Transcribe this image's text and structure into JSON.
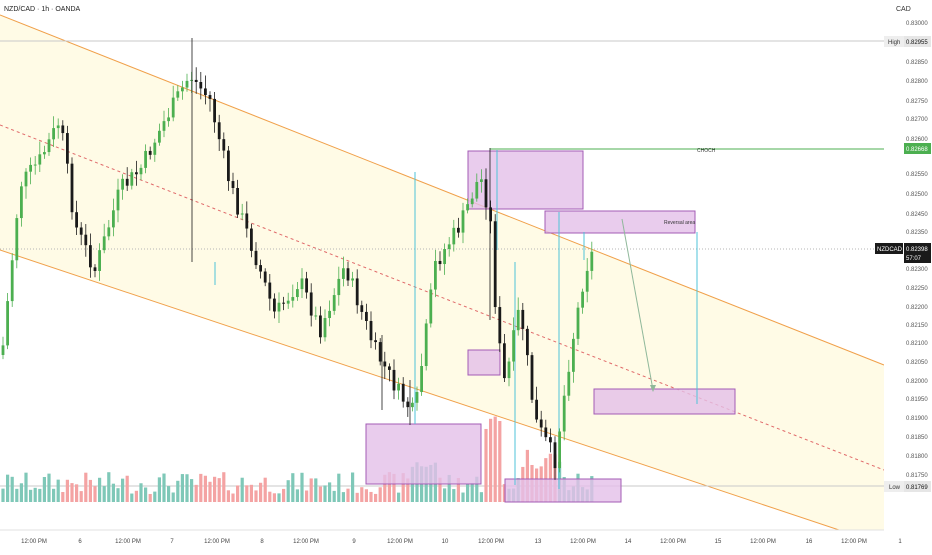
{
  "header": {
    "symbol_title": "NZD/CAD · 1h · OANDA",
    "currency": "CAD"
  },
  "price_scale": {
    "ticks": [
      "0.83000",
      "0.82900",
      "0.82850",
      "0.82800",
      "0.82750",
      "0.82700",
      "0.82600",
      "0.82550",
      "0.82500",
      "0.82450",
      "0.82350",
      "0.82300",
      "0.82250",
      "0.82200",
      "0.82150",
      "0.82100",
      "0.82050",
      "0.82000",
      "0.81950",
      "0.81900",
      "0.81850",
      "0.81800",
      "0.81750"
    ],
    "high_label": "High",
    "high_value": "0.82955",
    "choch_value": "0.82668",
    "symbol_tag": "NZDCAD",
    "current_value": "0.82398",
    "countdown": "57:07",
    "low_label": "Low",
    "low_value": "0.81769"
  },
  "time_axis": {
    "labels": [
      "12:00 PM",
      "6",
      "12:00 PM",
      "7",
      "12:00 PM",
      "8",
      "12:00 PM",
      "9",
      "12:00 PM",
      "10",
      "12:00 PM",
      "13",
      "12:00 PM",
      "14",
      "12:00 PM",
      "15",
      "12:00 PM",
      "16",
      "12:00 PM",
      "1"
    ]
  },
  "annotations": {
    "choch_label": "CHOCH",
    "reversal_label": "Reversal area"
  },
  "colors": {
    "up": "#4caf50",
    "down": "#1a1a1a",
    "vol_up": "#7fc8b8",
    "vol_down": "#f4a3a3",
    "channel": "#f0a04a",
    "midline": "#e06a6a",
    "zone_fill": "#e3bfe8",
    "zone_stroke": "#a35bb5",
    "choch_line": "#4caf50",
    "projection": "#4fc3d8"
  },
  "chart_data": {
    "type": "candlestick",
    "symbol": "NZD/CAD",
    "timeframe": "1h",
    "source": "OANDA",
    "ylim": [
      0.8172,
      0.8305
    ],
    "series": [
      {
        "name": "price_path",
        "x": [
          "5 12:00 PM",
          "6",
          "6 12:00 PM",
          "7",
          "7 12:00 PM",
          "8",
          "8 12:00 PM",
          "9",
          "9 12:00 PM",
          "10",
          "10 12:00 PM",
          "13",
          "13 12:00 PM",
          "13 late"
        ],
        "values": [
          0.8245,
          0.8253,
          0.8268,
          0.8282,
          0.8278,
          0.8245,
          0.8222,
          0.82,
          0.8198,
          0.823,
          0.8258,
          0.8194,
          0.8186,
          0.824
        ]
      }
    ],
    "levels": {
      "high": 0.82955,
      "choch": 0.82668,
      "current": 0.82398,
      "low": 0.81769
    }
  }
}
